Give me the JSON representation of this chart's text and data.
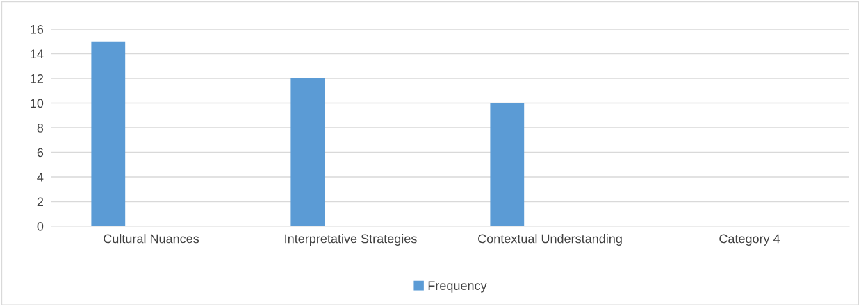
{
  "chart_data": {
    "type": "bar",
    "categories": [
      "Cultural Nuances",
      "Interpretative Strategies",
      "Contextual Understanding",
      "Category 4"
    ],
    "series": [
      {
        "name": "Frequency",
        "color": "#5b9bd5",
        "values": [
          15,
          12,
          10,
          null
        ]
      }
    ],
    "ylim": [
      0,
      16
    ],
    "yticks": [
      0,
      2,
      4,
      6,
      8,
      10,
      12,
      14,
      16
    ],
    "grid": "y",
    "legend": "bottom"
  }
}
